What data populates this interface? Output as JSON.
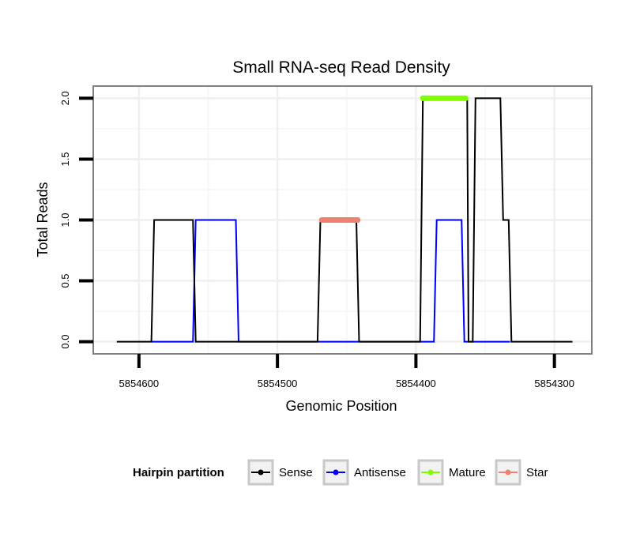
{
  "chart_data": {
    "type": "line",
    "title": "Small RNA-seq Read Density",
    "xlabel": "Genomic Position",
    "ylabel": "Total Reads",
    "x_reversed": true,
    "xlim": [
      5854633,
      5854273
    ],
    "ylim": [
      -0.1,
      2.1
    ],
    "x_ticks": [
      5854600,
      5854500,
      5854400,
      5854300
    ],
    "x_tick_labels": [
      "5854600",
      "5854500",
      "5854400",
      "5854300"
    ],
    "y_ticks": [
      0,
      0.5,
      1,
      1.5,
      2
    ],
    "y_tick_labels": [
      "0.0",
      "0.5",
      "1.0",
      "1.5",
      "2.0"
    ],
    "grid": true,
    "legend": {
      "title": "Hairpin partition",
      "position": "bottom",
      "entries": [
        {
          "label": "Sense",
          "color": "#000000"
        },
        {
          "label": "Antisense",
          "color": "#0000ff"
        },
        {
          "label": "Mature",
          "color": "#7fff00"
        },
        {
          "label": "Star",
          "color": "#f08070"
        }
      ]
    },
    "series": [
      {
        "name": "Sense",
        "color": "#000000",
        "x": [
          5854616,
          5854591,
          5854589,
          5854561,
          5854559,
          5854471,
          5854469,
          5854443,
          5854441,
          5854397,
          5854395,
          5854363,
          5854362,
          5854359,
          5854357,
          5854339,
          5854337,
          5854333,
          5854331,
          5854287
        ],
        "y": [
          0,
          0,
          1,
          1,
          0,
          0,
          1,
          1,
          0,
          0,
          2,
          2,
          0,
          0,
          2,
          2,
          1,
          1,
          0,
          0
        ]
      },
      {
        "name": "Antisense",
        "color": "#0000ff",
        "x": [
          5854591,
          5854561,
          5854559,
          5854530,
          5854528,
          5854501,
          5854499,
          5854387,
          5854385,
          5854367,
          5854365,
          5854332
        ],
        "y": [
          0,
          0,
          1,
          1,
          0,
          0,
          0,
          0,
          1,
          1,
          0,
          0
        ]
      },
      {
        "name": "Mature",
        "color": "#7fff00",
        "x": [
          5854395,
          5854364
        ],
        "y": [
          2,
          2
        ]
      },
      {
        "name": "Star",
        "color": "#f08070",
        "x": [
          5854468,
          5854442
        ],
        "y": [
          1,
          1
        ]
      }
    ]
  }
}
